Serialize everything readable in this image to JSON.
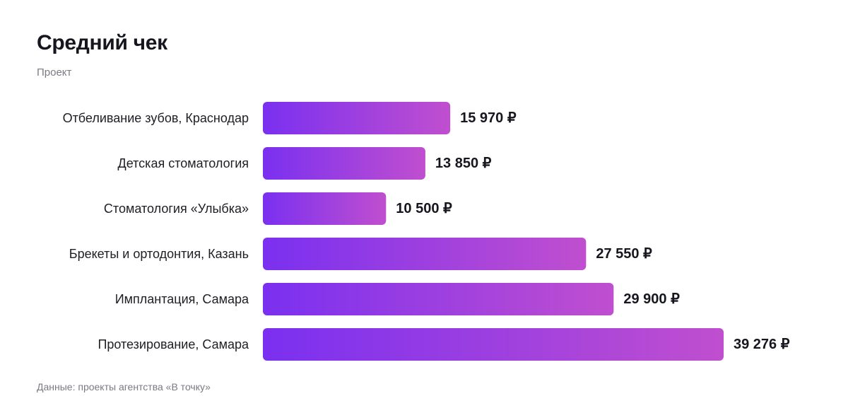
{
  "header": {
    "title": "Средний чек",
    "subtitle": "Проект"
  },
  "footer": {
    "source_note": "Данные: проекты агентства «В точку»"
  },
  "colors": {
    "bar_gradient_start": "#7a30f0",
    "bar_gradient_end": "#c04fcf",
    "label_color": "#1e1e24",
    "value_color": "#16161f"
  },
  "chart_data": {
    "type": "bar",
    "orientation": "horizontal",
    "title": "Средний чек",
    "subtitle": "Проект",
    "categories": [
      "Отбеливание зубов, Краснодар",
      "Детская стоматология",
      "Стоматология «Улыбка»",
      "Брекеты и ортодонтия, Казань",
      "Имплантация, Самара",
      "Протезирование, Самара"
    ],
    "values": [
      15970,
      13850,
      10500,
      27550,
      29900,
      39276
    ],
    "value_labels": [
      "15 970 ₽",
      "13 850 ₽",
      "10 500 ₽",
      "27 550 ₽",
      "29 900 ₽",
      "39 276 ₽"
    ],
    "xlim": [
      0,
      39276
    ],
    "grid": false,
    "legend": "none"
  }
}
